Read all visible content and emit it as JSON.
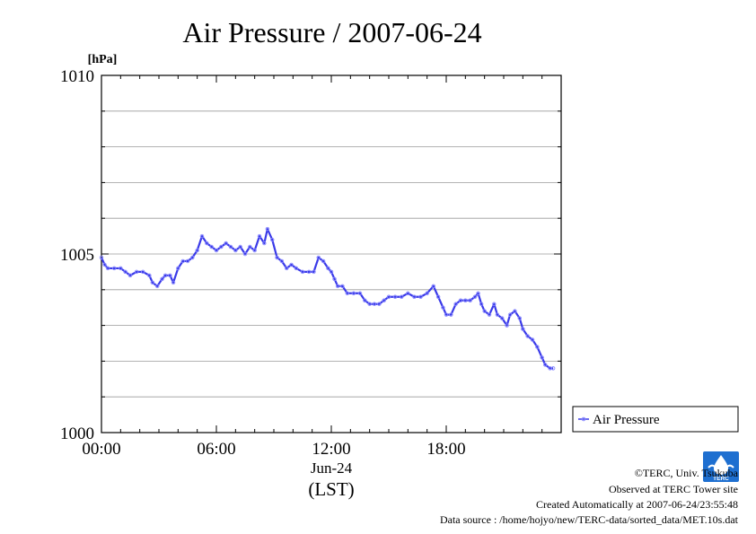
{
  "chart_data": {
    "type": "line",
    "title": "Air Pressure / 2007-06-24",
    "ylabel": "[hPa]",
    "xlabel": "(LST)",
    "x_date_label": "Jun-24",
    "ylim": [
      1000,
      1010
    ],
    "xlim": [
      "00:00",
      "24:00"
    ],
    "y_ticks": [
      {
        "value": 1000,
        "label": "1000"
      },
      {
        "value": 1005,
        "label": "1005"
      },
      {
        "value": 1010,
        "label": "1010"
      }
    ],
    "x_ticks": [
      {
        "hour": 0,
        "label": "00:00"
      },
      {
        "hour": 6,
        "label": "06:00"
      },
      {
        "hour": 12,
        "label": "12:00"
      },
      {
        "hour": 18,
        "label": "18:00"
      }
    ],
    "grid": true,
    "legend_position": "right",
    "series": [
      {
        "name": "Air Pressure",
        "color": "#3a3ae8",
        "points": [
          [
            "00:00",
            1004.9
          ],
          [
            "00:10",
            1004.7
          ],
          [
            "00:20",
            1004.6
          ],
          [
            "00:40",
            1004.6
          ],
          [
            "01:00",
            1004.6
          ],
          [
            "01:15",
            1004.5
          ],
          [
            "01:30",
            1004.4
          ],
          [
            "01:50",
            1004.5
          ],
          [
            "02:10",
            1004.5
          ],
          [
            "02:30",
            1004.4
          ],
          [
            "02:40",
            1004.2
          ],
          [
            "02:55",
            1004.1
          ],
          [
            "03:10",
            1004.3
          ],
          [
            "03:20",
            1004.4
          ],
          [
            "03:35",
            1004.4
          ],
          [
            "03:45",
            1004.2
          ],
          [
            "04:00",
            1004.6
          ],
          [
            "04:15",
            1004.8
          ],
          [
            "04:30",
            1004.8
          ],
          [
            "04:45",
            1004.9
          ],
          [
            "05:00",
            1005.1
          ],
          [
            "05:15",
            1005.5
          ],
          [
            "05:30",
            1005.3
          ],
          [
            "05:45",
            1005.2
          ],
          [
            "06:00",
            1005.1
          ],
          [
            "06:15",
            1005.2
          ],
          [
            "06:30",
            1005.3
          ],
          [
            "06:45",
            1005.2
          ],
          [
            "07:00",
            1005.1
          ],
          [
            "07:15",
            1005.2
          ],
          [
            "07:30",
            1005.0
          ],
          [
            "07:45",
            1005.2
          ],
          [
            "08:00",
            1005.1
          ],
          [
            "08:15",
            1005.5
          ],
          [
            "08:30",
            1005.3
          ],
          [
            "08:40",
            1005.7
          ],
          [
            "08:55",
            1005.4
          ],
          [
            "09:10",
            1004.9
          ],
          [
            "09:25",
            1004.8
          ],
          [
            "09:40",
            1004.6
          ],
          [
            "09:55",
            1004.7
          ],
          [
            "10:10",
            1004.6
          ],
          [
            "10:30",
            1004.5
          ],
          [
            "10:50",
            1004.5
          ],
          [
            "11:05",
            1004.5
          ],
          [
            "11:20",
            1004.9
          ],
          [
            "11:35",
            1004.8
          ],
          [
            "11:50",
            1004.6
          ],
          [
            "12:00",
            1004.5
          ],
          [
            "12:10",
            1004.3
          ],
          [
            "12:20",
            1004.1
          ],
          [
            "12:35",
            1004.1
          ],
          [
            "12:50",
            1003.9
          ],
          [
            "13:10",
            1003.9
          ],
          [
            "13:30",
            1003.9
          ],
          [
            "13:45",
            1003.7
          ],
          [
            "14:00",
            1003.6
          ],
          [
            "14:15",
            1003.6
          ],
          [
            "14:30",
            1003.6
          ],
          [
            "14:45",
            1003.7
          ],
          [
            "15:00",
            1003.8
          ],
          [
            "15:20",
            1003.8
          ],
          [
            "15:40",
            1003.8
          ],
          [
            "16:00",
            1003.9
          ],
          [
            "16:20",
            1003.8
          ],
          [
            "16:40",
            1003.8
          ],
          [
            "17:00",
            1003.9
          ],
          [
            "17:20",
            1004.1
          ],
          [
            "17:35",
            1003.8
          ],
          [
            "17:50",
            1003.5
          ],
          [
            "18:00",
            1003.3
          ],
          [
            "18:15",
            1003.3
          ],
          [
            "18:30",
            1003.6
          ],
          [
            "18:45",
            1003.7
          ],
          [
            "19:00",
            1003.7
          ],
          [
            "19:15",
            1003.7
          ],
          [
            "19:30",
            1003.8
          ],
          [
            "19:40",
            1003.9
          ],
          [
            "19:50",
            1003.6
          ],
          [
            "20:00",
            1003.4
          ],
          [
            "20:15",
            1003.3
          ],
          [
            "20:30",
            1003.6
          ],
          [
            "20:40",
            1003.3
          ],
          [
            "20:55",
            1003.2
          ],
          [
            "21:10",
            1003.0
          ],
          [
            "21:20",
            1003.3
          ],
          [
            "21:35",
            1003.4
          ],
          [
            "21:50",
            1003.2
          ],
          [
            "22:00",
            1002.9
          ],
          [
            "22:15",
            1002.7
          ],
          [
            "22:30",
            1002.6
          ],
          [
            "22:45",
            1002.4
          ],
          [
            "23:00",
            1002.1
          ],
          [
            "23:10",
            1001.9
          ],
          [
            "23:25",
            1001.8
          ],
          [
            "23:35",
            1001.8
          ]
        ]
      }
    ]
  },
  "footer": {
    "copyright": "©TERC, Univ. Tsukuba",
    "observed": "Observed at TERC Tower site",
    "created": "Created Automatically at 2007-06-24/23:55:48",
    "source": "Data source : /home/hojyo/new/TERC-data/sorted_data/MET.10s.dat"
  },
  "logo": {
    "text": "TERC",
    "icon": "terc-drop-logo-icon"
  }
}
